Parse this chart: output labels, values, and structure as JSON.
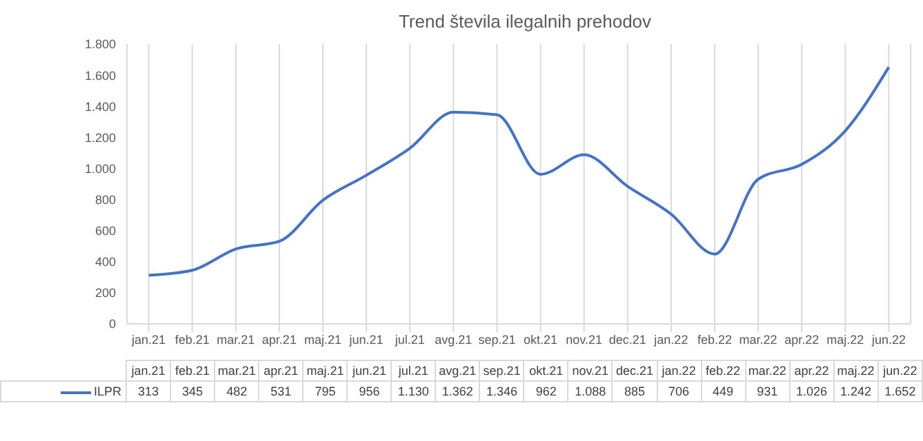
{
  "chart_data": {
    "type": "line",
    "title": "Trend števila ilegalnih prehodov",
    "categories": [
      "jan.21",
      "feb.21",
      "mar.21",
      "apr.21",
      "maj.21",
      "jun.21",
      "jul.21",
      "avg.21",
      "sep.21",
      "okt.21",
      "nov.21",
      "dec.21",
      "jan.22",
      "feb.22",
      "mar.22",
      "apr.22",
      "maj.22",
      "jun.22"
    ],
    "series": [
      {
        "name": "ILPR",
        "color": "#4472c4",
        "values": [
          313,
          345,
          482,
          531,
          795,
          956,
          1130,
          1362,
          1346,
          962,
          1088,
          885,
          706,
          449,
          931,
          1026,
          1242,
          1652
        ],
        "value_labels": [
          "313",
          "345",
          "482",
          "531",
          "795",
          "956",
          "1.130",
          "1.362",
          "1.346",
          "962",
          "1.088",
          "885",
          "706",
          "449",
          "931",
          "1.026",
          "1.242",
          "1.652"
        ]
      }
    ],
    "ylim": [
      0,
      1800
    ],
    "yticks": [
      {
        "value": 0,
        "label": "0"
      },
      {
        "value": 200,
        "label": "200"
      },
      {
        "value": 400,
        "label": "400"
      },
      {
        "value": 600,
        "label": "600"
      },
      {
        "value": 800,
        "label": "800"
      },
      {
        "value": 1000,
        "label": "1.000"
      },
      {
        "value": 1200,
        "label": "1.200"
      },
      {
        "value": 1400,
        "label": "1.400"
      },
      {
        "value": 1600,
        "label": "1.600"
      },
      {
        "value": 1800,
        "label": "1.800"
      }
    ],
    "grid": "x",
    "legend": "bottom left",
    "marker": "none",
    "line_style": "solid"
  }
}
